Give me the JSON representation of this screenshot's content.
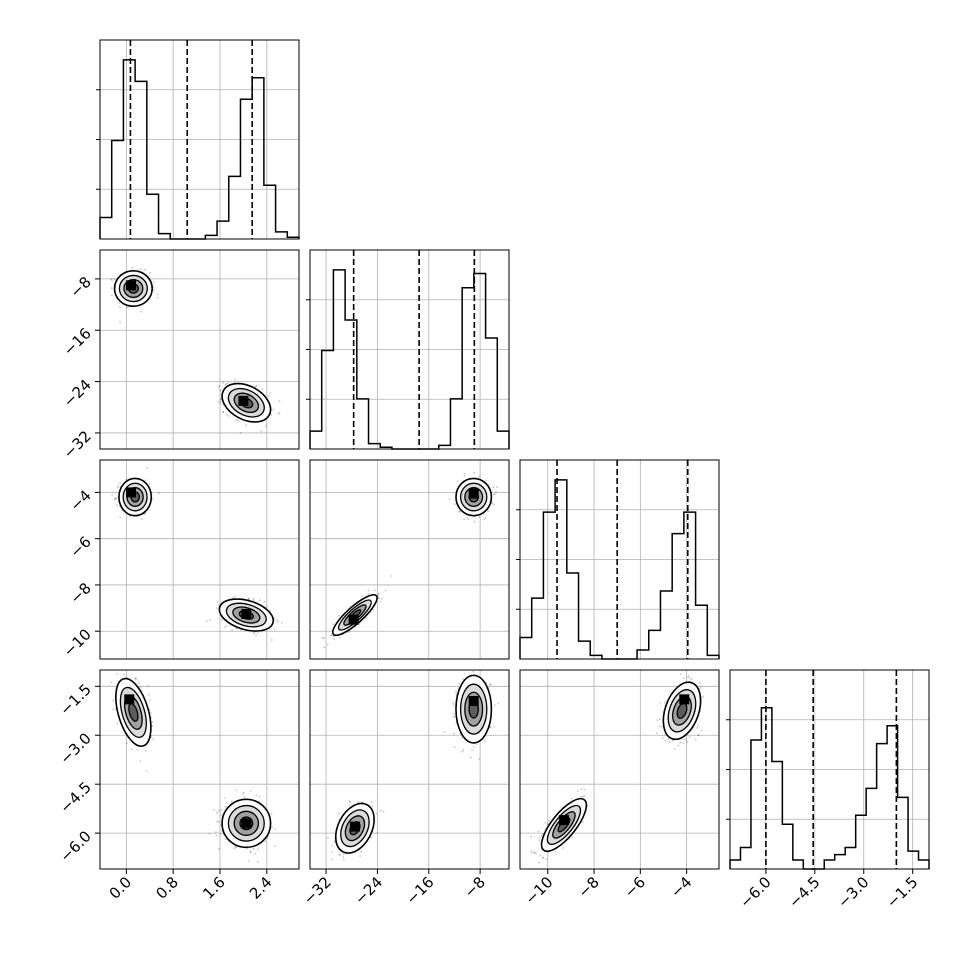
{
  "chart_data": {
    "type": "corner",
    "grid": true,
    "parameters": [
      {
        "index": 0,
        "range": [
          -0.45,
          2.95
        ],
        "ticks": [
          0.0,
          0.8,
          1.6,
          2.4
        ],
        "tick_labels": [
          "0.0",
          "0.8",
          "1.6",
          "2.4"
        ],
        "quantiles": [
          0.07,
          1.04,
          2.15
        ],
        "modes": [
          {
            "mean": 0.12,
            "sd": 0.13
          },
          {
            "mean": 2.05,
            "sd": 0.15
          }
        ]
      },
      {
        "index": 1,
        "range": [
          -34.5,
          -3.5
        ],
        "ticks": [
          -8,
          -16,
          -24,
          -32
        ],
        "tick_labels": [
          "−8",
          "−16",
          "−24",
          "−32"
        ],
        "quantiles": [
          -27.7,
          -17.5,
          -8.9
        ],
        "modes": [
          {
            "mean": -27.5,
            "sd": 1.1
          },
          {
            "mean": -9.0,
            "sd": 1.1
          }
        ]
      },
      {
        "index": 2,
        "range": [
          -11.2,
          -2.6
        ],
        "ticks": [
          -4,
          -6,
          -8,
          -10
        ],
        "tick_labels": [
          "−4",
          "−6",
          "−8",
          "−10"
        ],
        "quantiles": [
          -9.6,
          -7.0,
          -3.95
        ],
        "modes": [
          {
            "mean": -9.3,
            "sd": 0.35
          },
          {
            "mean": -4.2,
            "sd": 0.35
          }
        ]
      },
      {
        "index": 3,
        "range": [
          -7.1,
          -1.0
        ],
        "ticks": [
          -1.5,
          -3.0,
          -4.5,
          -6.0
        ],
        "tick_labels": [
          "−1.5",
          "−3.0",
          "−4.5",
          "−6.0"
        ],
        "quantiles": [
          -6.0,
          -4.55,
          -2.0
        ],
        "modes": [
          {
            "mean": -5.7,
            "sd": 0.3
          },
          {
            "mean": -2.1,
            "sd": 0.35
          }
        ]
      }
    ],
    "histograms": [
      {
        "param": 0,
        "counts": [
          0.12,
          0.55,
          1.0,
          0.88,
          0.25,
          0.03,
          0.0,
          0.0,
          0.0,
          0.02,
          0.1,
          0.35,
          0.78,
          0.9,
          0.3,
          0.04,
          0.01
        ]
      },
      {
        "param": 1,
        "counts": [
          0.1,
          0.55,
          1.0,
          0.72,
          0.28,
          0.03,
          0.01,
          0.0,
          0.0,
          0.0,
          0.0,
          0.02,
          0.28,
          0.9,
          0.98,
          0.62,
          0.1
        ]
      },
      {
        "param": 2,
        "counts": [
          0.12,
          0.34,
          0.82,
          1.0,
          0.48,
          0.1,
          0.02,
          0.0,
          0.0,
          0.0,
          0.05,
          0.16,
          0.38,
          0.7,
          0.82,
          0.3,
          0.02
        ]
      },
      {
        "param": 3,
        "counts": [
          0.05,
          0.12,
          0.72,
          0.9,
          0.6,
          0.25,
          0.05,
          0.0,
          0.0,
          0.05,
          0.08,
          0.12,
          0.3,
          0.45,
          0.7,
          0.8,
          0.4,
          0.1,
          0.05
        ]
      }
    ],
    "pairs": [
      {
        "x": 0,
        "y": 1,
        "clusters": [
          {
            "cx": 0.12,
            "cy": -9.5,
            "sx": 0.14,
            "sy": 1.2,
            "rho": 0.0,
            "peak": [
              0.08,
              -9.0
            ]
          },
          {
            "cx": 2.05,
            "cy": -27.3,
            "sx": 0.18,
            "sy": 1.3,
            "rho": -0.35,
            "peak": [
              2.0,
              -27.0
            ]
          }
        ]
      },
      {
        "x": 0,
        "y": 2,
        "clusters": [
          {
            "cx": 0.15,
            "cy": -4.2,
            "sx": 0.12,
            "sy": 0.35,
            "rho": 0.0,
            "peak": [
              0.08,
              -4.0
            ]
          },
          {
            "cx": 2.05,
            "cy": -9.3,
            "sx": 0.2,
            "sy": 0.3,
            "rho": -0.35,
            "peak": [
              2.05,
              -9.25
            ]
          }
        ]
      },
      {
        "x": 1,
        "y": 2,
        "clusters": [
          {
            "cx": -9.0,
            "cy": -4.2,
            "sx": 1.2,
            "sy": 0.35,
            "rho": 0.0,
            "peak": [
              -9.0,
              -4.05
            ]
          },
          {
            "cx": -27.5,
            "cy": -9.3,
            "sx": 1.5,
            "sy": 0.38,
            "rho": 0.85,
            "peak": [
              -27.7,
              -9.5
            ]
          }
        ]
      },
      {
        "x": 0,
        "y": 3,
        "clusters": [
          {
            "cx": 0.12,
            "cy": -2.3,
            "sx": 0.13,
            "sy": 0.45,
            "rho": -0.45,
            "peak": [
              0.05,
              -1.9
            ]
          },
          {
            "cx": 2.05,
            "cy": -5.7,
            "sx": 0.18,
            "sy": 0.32,
            "rho": 0.0,
            "peak": [
              2.05,
              -5.7
            ]
          }
        ]
      },
      {
        "x": 1,
        "y": 3,
        "clusters": [
          {
            "cx": -9.0,
            "cy": -2.2,
            "sx": 1.2,
            "sy": 0.45,
            "rho": 0.0,
            "peak": [
              -9.0,
              -1.95
            ]
          },
          {
            "cx": -27.5,
            "cy": -5.85,
            "sx": 1.3,
            "sy": 0.33,
            "rho": 0.35,
            "peak": [
              -27.5,
              -5.8
            ]
          }
        ]
      },
      {
        "x": 2,
        "y": 3,
        "clusters": [
          {
            "cx": -4.2,
            "cy": -2.25,
            "sx": 0.35,
            "sy": 0.38,
            "rho": 0.35,
            "peak": [
              -4.1,
              -1.9
            ]
          },
          {
            "cx": -9.3,
            "cy": -5.75,
            "sx": 0.42,
            "sy": 0.35,
            "rho": 0.75,
            "peak": [
              -9.3,
              -5.6
            ]
          }
        ]
      }
    ]
  }
}
